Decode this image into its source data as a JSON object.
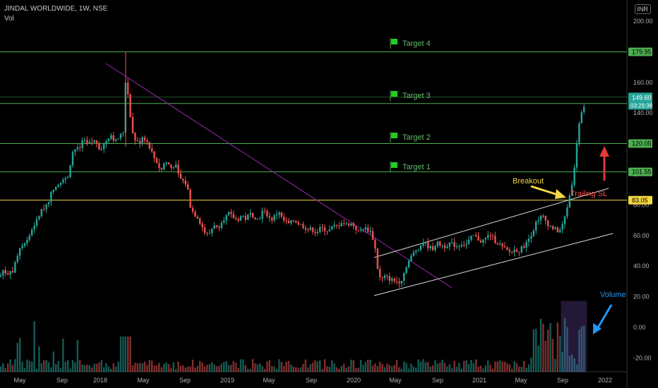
{
  "chart_data": {
    "type": "candlestick",
    "title": "JINDAL WORLDWIDE, 1W, NSE",
    "subtitle": "Vol",
    "currency": "INR",
    "ylim": [
      -30,
      210
    ],
    "y_ticks": [
      200,
      180,
      160,
      140,
      120,
      100,
      80,
      60,
      40,
      20,
      0,
      -20
    ],
    "x_ticks": [
      "May",
      "Sep",
      "2018",
      "May",
      "Sep",
      "2019",
      "May",
      "Sep",
      "2020",
      "May",
      "Sep",
      "2021",
      "May",
      "Sep",
      "2022"
    ],
    "price_path": [
      [
        0,
        33
      ],
      [
        5,
        38
      ],
      [
        10,
        34
      ],
      [
        14,
        38
      ],
      [
        18,
        36
      ],
      [
        23,
        45
      ],
      [
        28,
        52
      ],
      [
        35,
        56
      ],
      [
        40,
        58
      ],
      [
        45,
        64
      ],
      [
        52,
        70
      ],
      [
        60,
        77
      ],
      [
        65,
        80
      ],
      [
        70,
        84
      ],
      [
        75,
        91
      ],
      [
        80,
        92
      ],
      [
        85,
        95
      ],
      [
        90,
        98
      ],
      [
        95,
        96
      ],
      [
        100,
        108
      ],
      [
        104,
        117
      ],
      [
        108,
        116
      ],
      [
        113,
        117
      ],
      [
        118,
        122
      ],
      [
        124,
        119
      ],
      [
        130,
        121
      ],
      [
        136,
        122
      ],
      [
        142,
        116
      ],
      [
        148,
        120
      ],
      [
        153,
        124
      ],
      [
        158,
        126
      ],
      [
        163,
        121
      ],
      [
        168,
        124
      ],
      [
        172,
        126
      ],
      [
        175,
        128
      ],
      [
        178,
        163
      ],
      [
        182,
        150
      ],
      [
        187,
        128
      ],
      [
        192,
        122
      ],
      [
        197,
        120
      ],
      [
        202,
        125
      ],
      [
        207,
        122
      ],
      [
        212,
        118
      ],
      [
        217,
        112
      ],
      [
        222,
        108
      ],
      [
        228,
        102
      ],
      [
        233,
        108
      ],
      [
        238,
        107
      ],
      [
        243,
        104
      ],
      [
        248,
        107
      ],
      [
        252,
        100
      ],
      [
        257,
        96
      ],
      [
        262,
        95
      ],
      [
        266,
        90
      ],
      [
        270,
        78
      ],
      [
        275,
        74
      ],
      [
        280,
        72
      ],
      [
        286,
        66
      ],
      [
        292,
        60
      ],
      [
        298,
        62
      ],
      [
        303,
        68
      ],
      [
        308,
        64
      ],
      [
        314,
        70
      ],
      [
        319,
        72
      ],
      [
        324,
        74
      ],
      [
        330,
        72
      ],
      [
        336,
        70
      ],
      [
        342,
        73
      ],
      [
        348,
        71
      ],
      [
        354,
        74
      ],
      [
        360,
        73
      ],
      [
        366,
        70
      ],
      [
        372,
        76
      ],
      [
        378,
        74
      ],
      [
        384,
        70
      ],
      [
        390,
        73
      ],
      [
        395,
        76
      ],
      [
        400,
        70
      ],
      [
        405,
        69
      ],
      [
        410,
        67
      ],
      [
        415,
        70
      ],
      [
        420,
        69
      ],
      [
        425,
        67
      ],
      [
        430,
        66
      ],
      [
        436,
        64
      ],
      [
        442,
        64
      ],
      [
        448,
        62
      ],
      [
        455,
        65
      ],
      [
        460,
        64
      ],
      [
        466,
        63
      ],
      [
        472,
        66
      ],
      [
        478,
        66
      ],
      [
        484,
        69
      ],
      [
        490,
        67
      ],
      [
        496,
        68
      ],
      [
        502,
        66
      ],
      [
        508,
        62
      ],
      [
        514,
        65
      ],
      [
        520,
        64
      ],
      [
        526,
        62
      ],
      [
        532,
        50
      ],
      [
        536,
        34
      ],
      [
        540,
        31
      ],
      [
        545,
        33
      ],
      [
        550,
        32
      ],
      [
        555,
        31
      ],
      [
        560,
        30
      ],
      [
        565,
        30
      ],
      [
        570,
        32
      ],
      [
        575,
        40
      ],
      [
        580,
        44
      ],
      [
        585,
        48
      ],
      [
        590,
        51
      ],
      [
        595,
        53
      ],
      [
        600,
        56
      ],
      [
        606,
        53
      ],
      [
        612,
        51
      ],
      [
        618,
        55
      ],
      [
        624,
        54
      ],
      [
        630,
        53
      ],
      [
        636,
        55
      ],
      [
        642,
        54
      ],
      [
        648,
        53
      ],
      [
        654,
        55
      ],
      [
        660,
        54
      ],
      [
        665,
        57
      ],
      [
        670,
        60
      ],
      [
        676,
        58
      ],
      [
        682,
        56
      ],
      [
        688,
        58
      ],
      [
        694,
        61
      ],
      [
        700,
        57
      ],
      [
        706,
        55
      ],
      [
        712,
        52
      ],
      [
        718,
        50
      ],
      [
        724,
        49
      ],
      [
        730,
        51
      ],
      [
        736,
        50
      ],
      [
        741,
        53
      ],
      [
        746,
        55
      ],
      [
        751,
        60
      ],
      [
        756,
        64
      ],
      [
        760,
        70
      ],
      [
        765,
        72
      ],
      [
        770,
        72
      ],
      [
        775,
        68
      ],
      [
        780,
        66
      ],
      [
        785,
        64
      ],
      [
        790,
        63
      ],
      [
        795,
        64
      ],
      [
        800,
        72
      ],
      [
        805,
        82
      ],
      [
        810,
        94
      ],
      [
        813,
        100
      ],
      [
        815,
        112
      ],
      [
        817,
        121
      ],
      [
        819,
        125
      ],
      [
        821,
        137
      ],
      [
        823,
        142
      ],
      [
        825,
        135
      ],
      [
        827,
        142
      ],
      [
        830,
        150
      ]
    ],
    "key_levels": [
      {
        "value": 179.95,
        "label": "179.95",
        "color": "#4caf50",
        "note": "Target 4",
        "nx": 556,
        "ny": 61
      },
      {
        "value": 146.2,
        "label": "146.20",
        "color": "#4caf50",
        "note": "Target 3",
        "nx": 556,
        "ny": 135
      },
      {
        "value": 120.05,
        "label": "120.05",
        "color": "#4caf50",
        "note": "Target 2",
        "nx": 556,
        "ny": 194
      },
      {
        "value": 101.55,
        "label": "101.55",
        "color": "#4caf50",
        "note": "Target 1",
        "nx": 556,
        "ny": 236
      },
      {
        "value": 83.05,
        "label": "83.05",
        "color": "#f5d742",
        "note": "",
        "nx": 0,
        "ny": 0
      }
    ],
    "last_price": {
      "value": 149.6,
      "label": "149.60",
      "countdown": "03:29:38",
      "color": "#26a69a"
    },
    "annotations": {
      "breakout": "Breakout",
      "trailing_sl": "Trailing SL",
      "volume": "Volume"
    },
    "colors": {
      "up": "#26a69a",
      "down": "#ef5350",
      "trendline": "#9c27b0",
      "channel": "#dddddd",
      "breakout": "#f5d742",
      "sl_arrow": "#e53935",
      "volume_box": "#7e57c2",
      "volume_text": "#2196f3"
    }
  }
}
